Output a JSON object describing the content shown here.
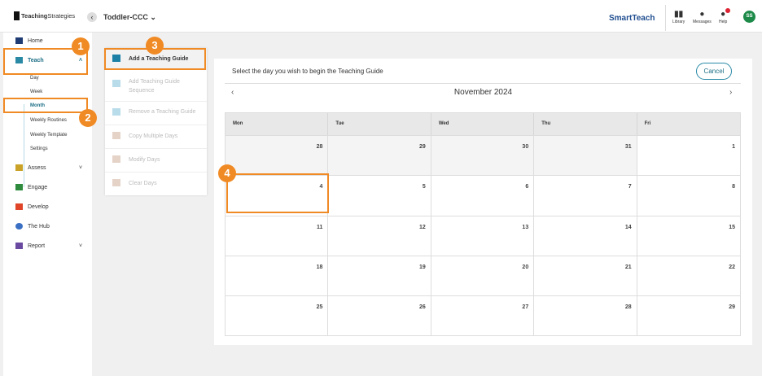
{
  "header": {
    "logo_bold": "Teaching",
    "logo_light": "Strategies",
    "class_name": "Toddler-CCC",
    "brand": "SmartTeach",
    "library": "Library",
    "messages": "Messages",
    "help": "Help",
    "avatar": "SS"
  },
  "sidebar": {
    "items": [
      {
        "label": "Home"
      },
      {
        "label": "Teach"
      },
      {
        "label": "Assess"
      },
      {
        "label": "Engage"
      },
      {
        "label": "Develop"
      },
      {
        "label": "The Hub"
      },
      {
        "label": "Report"
      }
    ],
    "teach_sub": [
      "Day",
      "Week",
      "Month",
      "Weekly Routines",
      "Weekly Template",
      "Settings"
    ]
  },
  "menu": {
    "items": [
      "Add a Teaching Guide",
      "Add Teaching Guide Sequence",
      "Remove a Teaching Guide",
      "Copy Multiple Days",
      "Modify Days",
      "Clear Days"
    ]
  },
  "callouts": [
    "1",
    "2",
    "3",
    "4"
  ],
  "calendar": {
    "prompt": "Select the day you wish to begin the Teaching Guide",
    "cancel": "Cancel",
    "month": "November 2024",
    "prev": "‹",
    "next": "›",
    "weekdays": [
      "Mon",
      "Tue",
      "Wed",
      "Thu",
      "Fri"
    ],
    "weeks": [
      [
        "28",
        "29",
        "30",
        "31",
        "1"
      ],
      [
        "4",
        "5",
        "6",
        "7",
        "8"
      ],
      [
        "11",
        "12",
        "13",
        "14",
        "15"
      ],
      [
        "18",
        "19",
        "20",
        "21",
        "22"
      ],
      [
        "25",
        "26",
        "27",
        "28",
        "29"
      ]
    ]
  },
  "colors": {
    "accent": "#f08a24",
    "teal": "#1b6e86"
  }
}
